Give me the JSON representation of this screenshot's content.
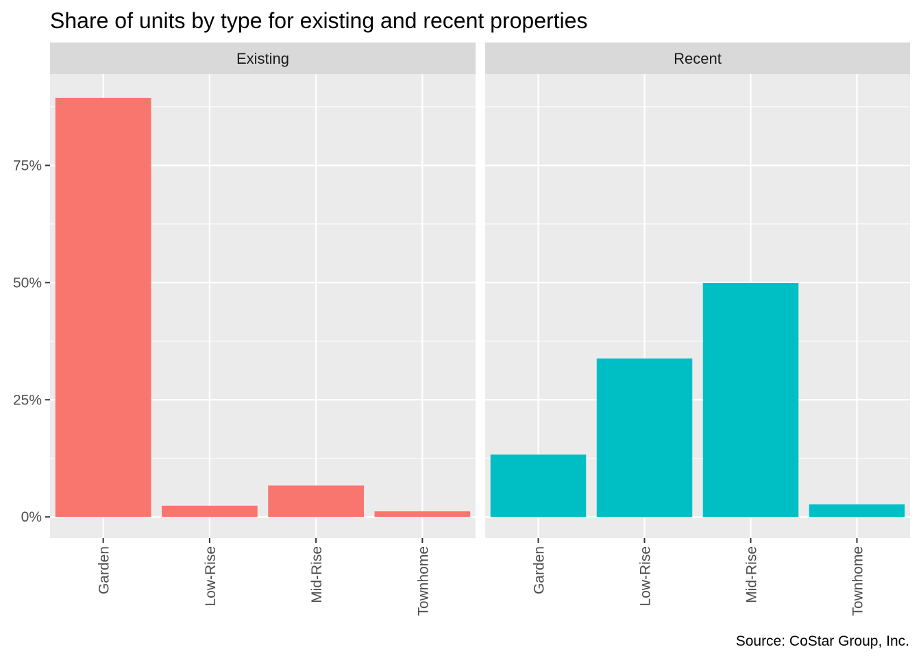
{
  "chart_data": {
    "type": "bar",
    "title": "Share of units by type for existing and recent properties",
    "caption": "Source: CoStar Group, Inc.",
    "xlabel": "",
    "ylabel": "",
    "categories": [
      "Garden",
      "Low-Rise",
      "Mid-Rise",
      "Townhome"
    ],
    "y_ticks": [
      0,
      0.25,
      0.5,
      0.75
    ],
    "y_tick_labels": [
      "0%",
      "25%",
      "50%",
      "75%"
    ],
    "ylim": [
      -0.045,
      0.945
    ],
    "grid": true,
    "legend": "none",
    "facets": [
      {
        "name": "Existing",
        "color": "#F8766D",
        "values": [
          0.894,
          0.024,
          0.067,
          0.012
        ]
      },
      {
        "name": "Recent",
        "color": "#00BFC4",
        "values": [
          0.133,
          0.338,
          0.499,
          0.027
        ]
      }
    ]
  }
}
